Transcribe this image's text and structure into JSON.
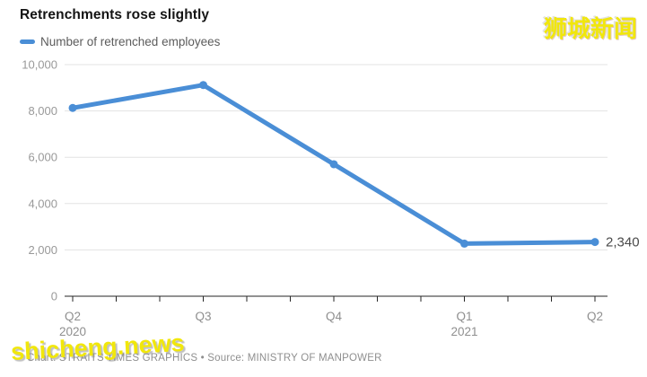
{
  "header": {
    "title": "Retrenchments rose slightly",
    "legend": {
      "label": "Number of retrenched employees",
      "swatch_color": "#4a8ed6"
    }
  },
  "watermarks": {
    "top_right_text": "狮城新闻",
    "bottom_left_text": "shicheng.news",
    "color": "#f1e70b"
  },
  "footer": {
    "attribution": "Chart: STRAITS TIMES GRAPHICS • Source: MINISTRY OF MANPOWER"
  },
  "chart_data": {
    "type": "line",
    "title": "Retrenchments rose slightly",
    "legend": [
      "Number of retrenched employees"
    ],
    "categories": [
      {
        "q": "Q2",
        "year": "2020"
      },
      {
        "q": "Q3"
      },
      {
        "q": "Q4"
      },
      {
        "q": "Q1",
        "year": "2021"
      },
      {
        "q": "Q2"
      }
    ],
    "values": [
      8130,
      9120,
      5700,
      2270,
      2340
    ],
    "end_label": "2,340",
    "ylim": [
      0,
      10000
    ],
    "y_ticks": [
      0,
      2000,
      4000,
      6000,
      8000,
      10000
    ],
    "y_tick_labels": [
      "0",
      "2,000",
      "4,000",
      "6,000",
      "8,000",
      "10,000"
    ],
    "minor_ticks_per_interval": 2,
    "grid": true,
    "legend_position": "top-left",
    "line_color": "#4a8ed6",
    "gridline_color": "#e3e3e3",
    "axis_color": "#262626",
    "axis_label_color": "#999999",
    "end_label_color": "#4a4a4a"
  }
}
